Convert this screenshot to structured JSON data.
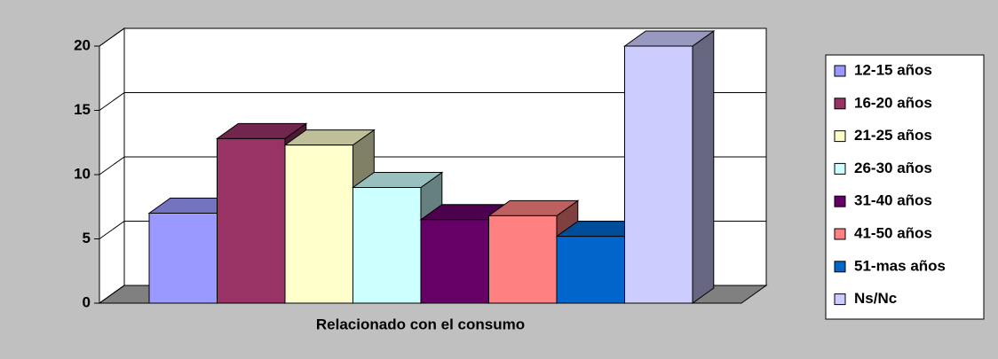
{
  "chart_data": {
    "type": "bar",
    "categories": [
      "Relacionado con el consumo"
    ],
    "series": [
      {
        "name": "12-15 años",
        "color": "#9999ff",
        "values": [
          7
        ]
      },
      {
        "name": "16-20 años",
        "color": "#993366",
        "values": [
          12.8
        ]
      },
      {
        "name": "21-25 años",
        "color": "#ffffcc",
        "values": [
          12.3
        ]
      },
      {
        "name": "26-30 años",
        "color": "#ccffff",
        "values": [
          9
        ]
      },
      {
        "name": "31-40 años",
        "color": "#660066",
        "values": [
          6.5
        ]
      },
      {
        "name": "41-50 años",
        "color": "#ff8080",
        "values": [
          6.8
        ]
      },
      {
        "name": "51-mas años",
        "color": "#0066cc",
        "values": [
          5.2
        ]
      },
      {
        "name": "Ns/Nc",
        "color": "#ccccff",
        "values": [
          20
        ]
      }
    ],
    "ylim": [
      0,
      20
    ],
    "yticks": [
      0,
      5,
      10,
      15,
      20
    ],
    "grid": true,
    "legend": "right"
  }
}
